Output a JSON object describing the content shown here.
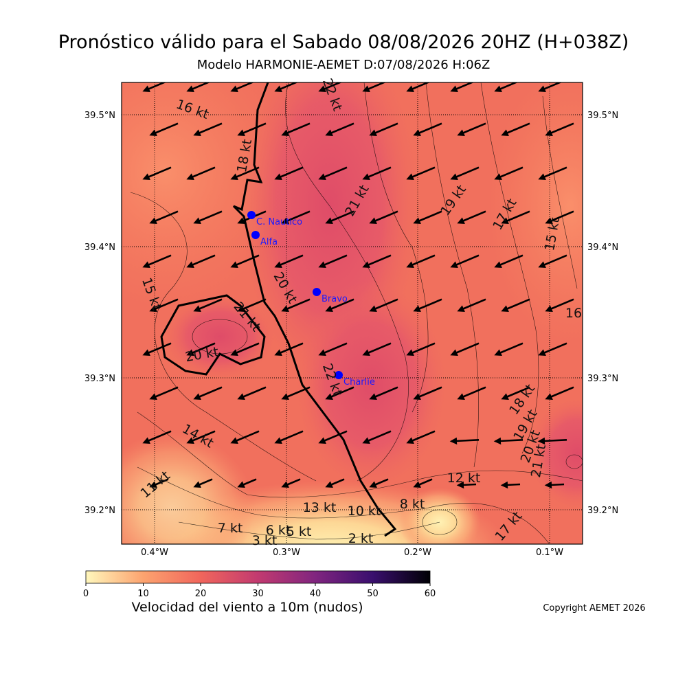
{
  "title": "Pronóstico válido para el Sabado 08/08/2026 20HZ (H+038Z)",
  "subtitle": "Modelo HARMONIE-AEMET D:07/08/2026 H:06Z",
  "map": {
    "lat_ticks": [
      "39.5°N",
      "39.4°N",
      "39.3°N",
      "39.2°N"
    ],
    "lon_ticks": [
      "0.4°W",
      "0.3°W",
      "0.2°W",
      "0.1°W"
    ],
    "stations": [
      "C. Nautico",
      "Alfa",
      "Bravo",
      "Charlie"
    ],
    "contour_labels": [
      "16 kt",
      "18 kt",
      "22 kt",
      "21 kt",
      "19 kt",
      "17 kt",
      "15 kt",
      "16",
      "15 kt",
      "20 kt",
      "21 kt",
      "20 kt",
      "22 kt",
      "18 kt",
      "19 kt",
      "20 kt",
      "21 kt",
      "14 kt",
      "11 kt",
      "12 kt",
      "13 kt",
      "10 kt",
      "8 kt",
      "7 kt",
      "6 kt",
      "5 kt",
      "3 kt",
      "2 kt",
      "17 kt"
    ]
  },
  "colorbar": {
    "label": "Velocidad del viento a 10m (nudos)",
    "range": [
      0,
      60
    ],
    "ticks": [
      0,
      10,
      20,
      30,
      40,
      50,
      60
    ]
  },
  "copyright": "Copyright AEMET 2026"
}
